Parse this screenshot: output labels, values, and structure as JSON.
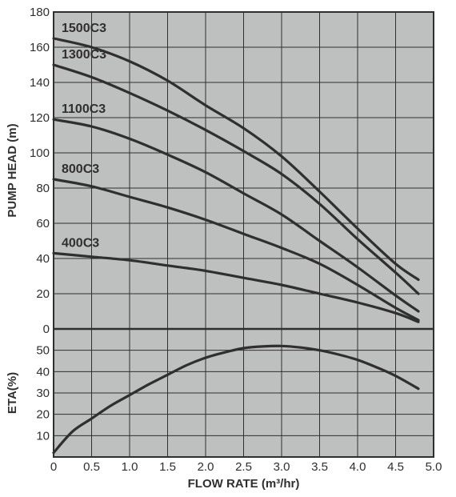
{
  "colors": {
    "background": "#ffffff",
    "plot_background": "#bebfbf",
    "grid": "#2f2f2f",
    "frame": "#2f2f2f",
    "curve": "#2f2f2f",
    "text": "#2f2f2f"
  },
  "chart_data": [
    {
      "type": "line",
      "ylabel": "PUMP HEAD (m)",
      "xlim": [
        0,
        5.0
      ],
      "ylim": [
        0,
        180
      ],
      "grid": true,
      "x_ticks": [
        0,
        0.5,
        1.0,
        1.5,
        2.0,
        2.5,
        3.0,
        3.5,
        4.0,
        4.5,
        5.0
      ],
      "y_ticks": [
        0,
        20,
        40,
        60,
        80,
        100,
        120,
        140,
        160,
        180
      ],
      "y_tick_labels": [
        "0",
        "20",
        "40",
        "60",
        "80",
        "100",
        "120",
        "140",
        "160",
        "180"
      ],
      "series": [
        {
          "name": "1500C3",
          "x": [
            0,
            0.5,
            1.0,
            1.5,
            2.0,
            2.5,
            3.0,
            3.5,
            4.0,
            4.5,
            4.8
          ],
          "y": [
            165,
            160,
            152,
            141,
            127,
            114,
            98,
            78,
            57,
            37,
            28
          ]
        },
        {
          "name": "1300C3",
          "x": [
            0,
            0.5,
            1.0,
            1.5,
            2.0,
            2.5,
            3.0,
            3.5,
            4.0,
            4.5,
            4.8
          ],
          "y": [
            150,
            143,
            134,
            124,
            113,
            101,
            88,
            71,
            51,
            32,
            20
          ]
        },
        {
          "name": "1100C3",
          "x": [
            0,
            0.5,
            1.0,
            1.5,
            2.0,
            2.5,
            3.0,
            3.5,
            4.0,
            4.5,
            4.8
          ],
          "y": [
            119,
            115,
            108,
            99,
            89,
            77,
            65,
            50,
            35,
            19,
            10
          ]
        },
        {
          "name": "800C3",
          "x": [
            0,
            0.5,
            1.0,
            1.5,
            2.0,
            2.5,
            3.0,
            3.5,
            4.0,
            4.5,
            4.8
          ],
          "y": [
            85,
            81,
            75,
            69,
            62,
            54,
            46,
            37,
            25,
            12,
            5
          ]
        },
        {
          "name": "400C3",
          "x": [
            0,
            0.5,
            1.0,
            1.5,
            2.0,
            2.5,
            3.0,
            3.5,
            4.0,
            4.5,
            4.8
          ],
          "y": [
            43,
            41,
            39,
            36,
            33,
            29,
            25,
            20,
            15,
            9,
            4
          ]
        }
      ]
    },
    {
      "type": "line",
      "xlabel": "FLOW RATE (m³/hr)",
      "ylabel": "ETA(%)",
      "xlim": [
        0,
        5.0
      ],
      "ylim": [
        0,
        60
      ],
      "grid": true,
      "x_ticks": [
        0,
        0.5,
        1.0,
        1.5,
        2.0,
        2.5,
        3.0,
        3.5,
        4.0,
        4.5,
        5.0
      ],
      "x_tick_labels": [
        "0",
        "0.5",
        "1.0",
        "1.5",
        "2.0",
        "2.5",
        "3.0",
        "3.5",
        "4.0",
        "4.5",
        "5.0"
      ],
      "y_ticks": [
        0,
        10,
        20,
        30,
        40,
        50,
        60
      ],
      "y_tick_labels": [
        "10",
        "20",
        "30",
        "40",
        "50"
      ],
      "series": [
        {
          "x": [
            0,
            0.25,
            0.5,
            0.75,
            1.0,
            1.25,
            1.5,
            1.75,
            2.0,
            2.25,
            2.5,
            2.75,
            3.0,
            3.25,
            3.5,
            3.75,
            4.0,
            4.25,
            4.5,
            4.8
          ],
          "y": [
            2,
            12,
            18,
            24,
            29,
            34,
            38.5,
            43,
            46.5,
            49,
            51,
            51.8,
            52,
            51.3,
            50,
            48,
            45.5,
            42,
            38,
            32
          ]
        }
      ]
    }
  ]
}
